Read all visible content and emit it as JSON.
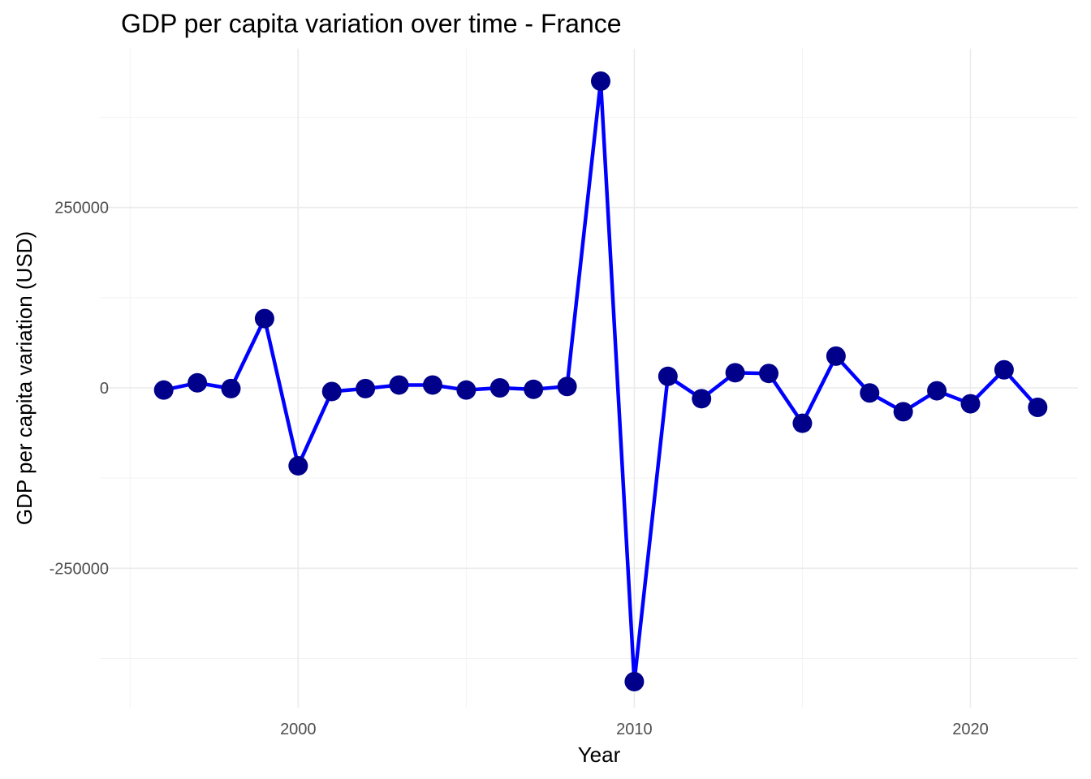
{
  "chart_data": {
    "type": "line",
    "title": "GDP per capita variation over time - France",
    "xlabel": "Year",
    "ylabel": "GDP per capita variation (USD)",
    "xlim": [
      1994.1,
      2023.2
    ],
    "ylim": [
      -443000,
      470000
    ],
    "x_ticks": [
      2000,
      2010,
      2020
    ],
    "y_ticks": [
      -250000,
      0,
      250000
    ],
    "colors": {
      "line": "#0000ff",
      "point": "#00008b"
    },
    "series": [
      {
        "x": [
          1996,
          1997,
          1998,
          1999,
          2000,
          2001,
          2002,
          2003,
          2004,
          2005,
          2006,
          2007,
          2008,
          2009,
          2010,
          2011,
          2012,
          2013,
          2014,
          2015,
          2016,
          2017,
          2018,
          2019,
          2020,
          2021,
          2022
        ],
        "values": [
          -3000,
          7000,
          -1000,
          96000,
          -108000,
          -5000,
          -1000,
          4000,
          4000,
          -3000,
          0,
          -2000,
          2000,
          425000,
          -407000,
          16000,
          -15000,
          21000,
          20000,
          -49000,
          44000,
          -7000,
          -33000,
          -4000,
          -22000,
          25000,
          -27000
        ]
      }
    ]
  }
}
